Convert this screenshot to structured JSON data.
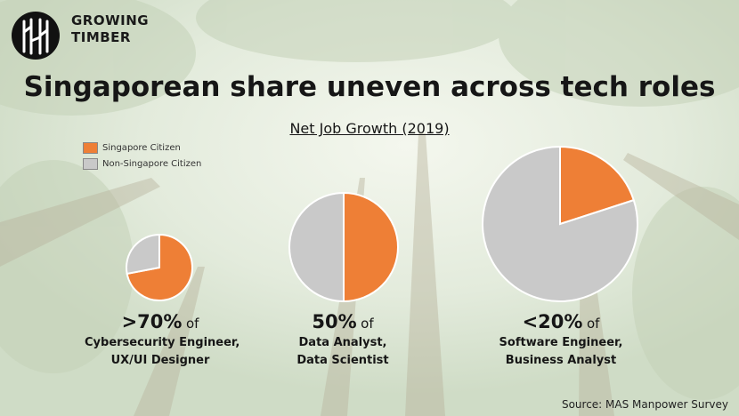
{
  "brand": {
    "line1": "GROWING",
    "line2": "TIMBER"
  },
  "colors": {
    "singapore": "#ee7f36",
    "non_singapore": "#c9c9c9",
    "edge": "#ffffff"
  },
  "chart_data": {
    "type": "pie",
    "title": "Singaporean share uneven across tech roles",
    "subtitle": "Net Job Growth (2019)",
    "legend": {
      "placement": "top-left",
      "entries": [
        "Singapore Citizen",
        "Non-Singapore Citizen"
      ]
    },
    "pies": [
      {
        "share_label": ">70%",
        "of_label": "of",
        "roles": [
          "Cybersecurity Engineer,",
          "UX/UI Designer"
        ],
        "values": [
          {
            "name": "Singapore Citizen",
            "value": 72
          },
          {
            "name": "Non-Singapore Citizen",
            "value": 28
          }
        ]
      },
      {
        "share_label": "50%",
        "of_label": "of",
        "roles": [
          "Data Analyst,",
          "Data Scientist"
        ],
        "values": [
          {
            "name": "Singapore Citizen",
            "value": 50
          },
          {
            "name": "Non-Singapore Citizen",
            "value": 50
          }
        ]
      },
      {
        "share_label": "<20%",
        "of_label": "of",
        "roles": [
          "Software Engineer,",
          "Business Analyst"
        ],
        "values": [
          {
            "name": "Singapore Citizen",
            "value": 20
          },
          {
            "name": "Non-Singapore Citizen",
            "value": 80
          }
        ]
      }
    ]
  },
  "source": "Source: MAS Manpower Survey"
}
